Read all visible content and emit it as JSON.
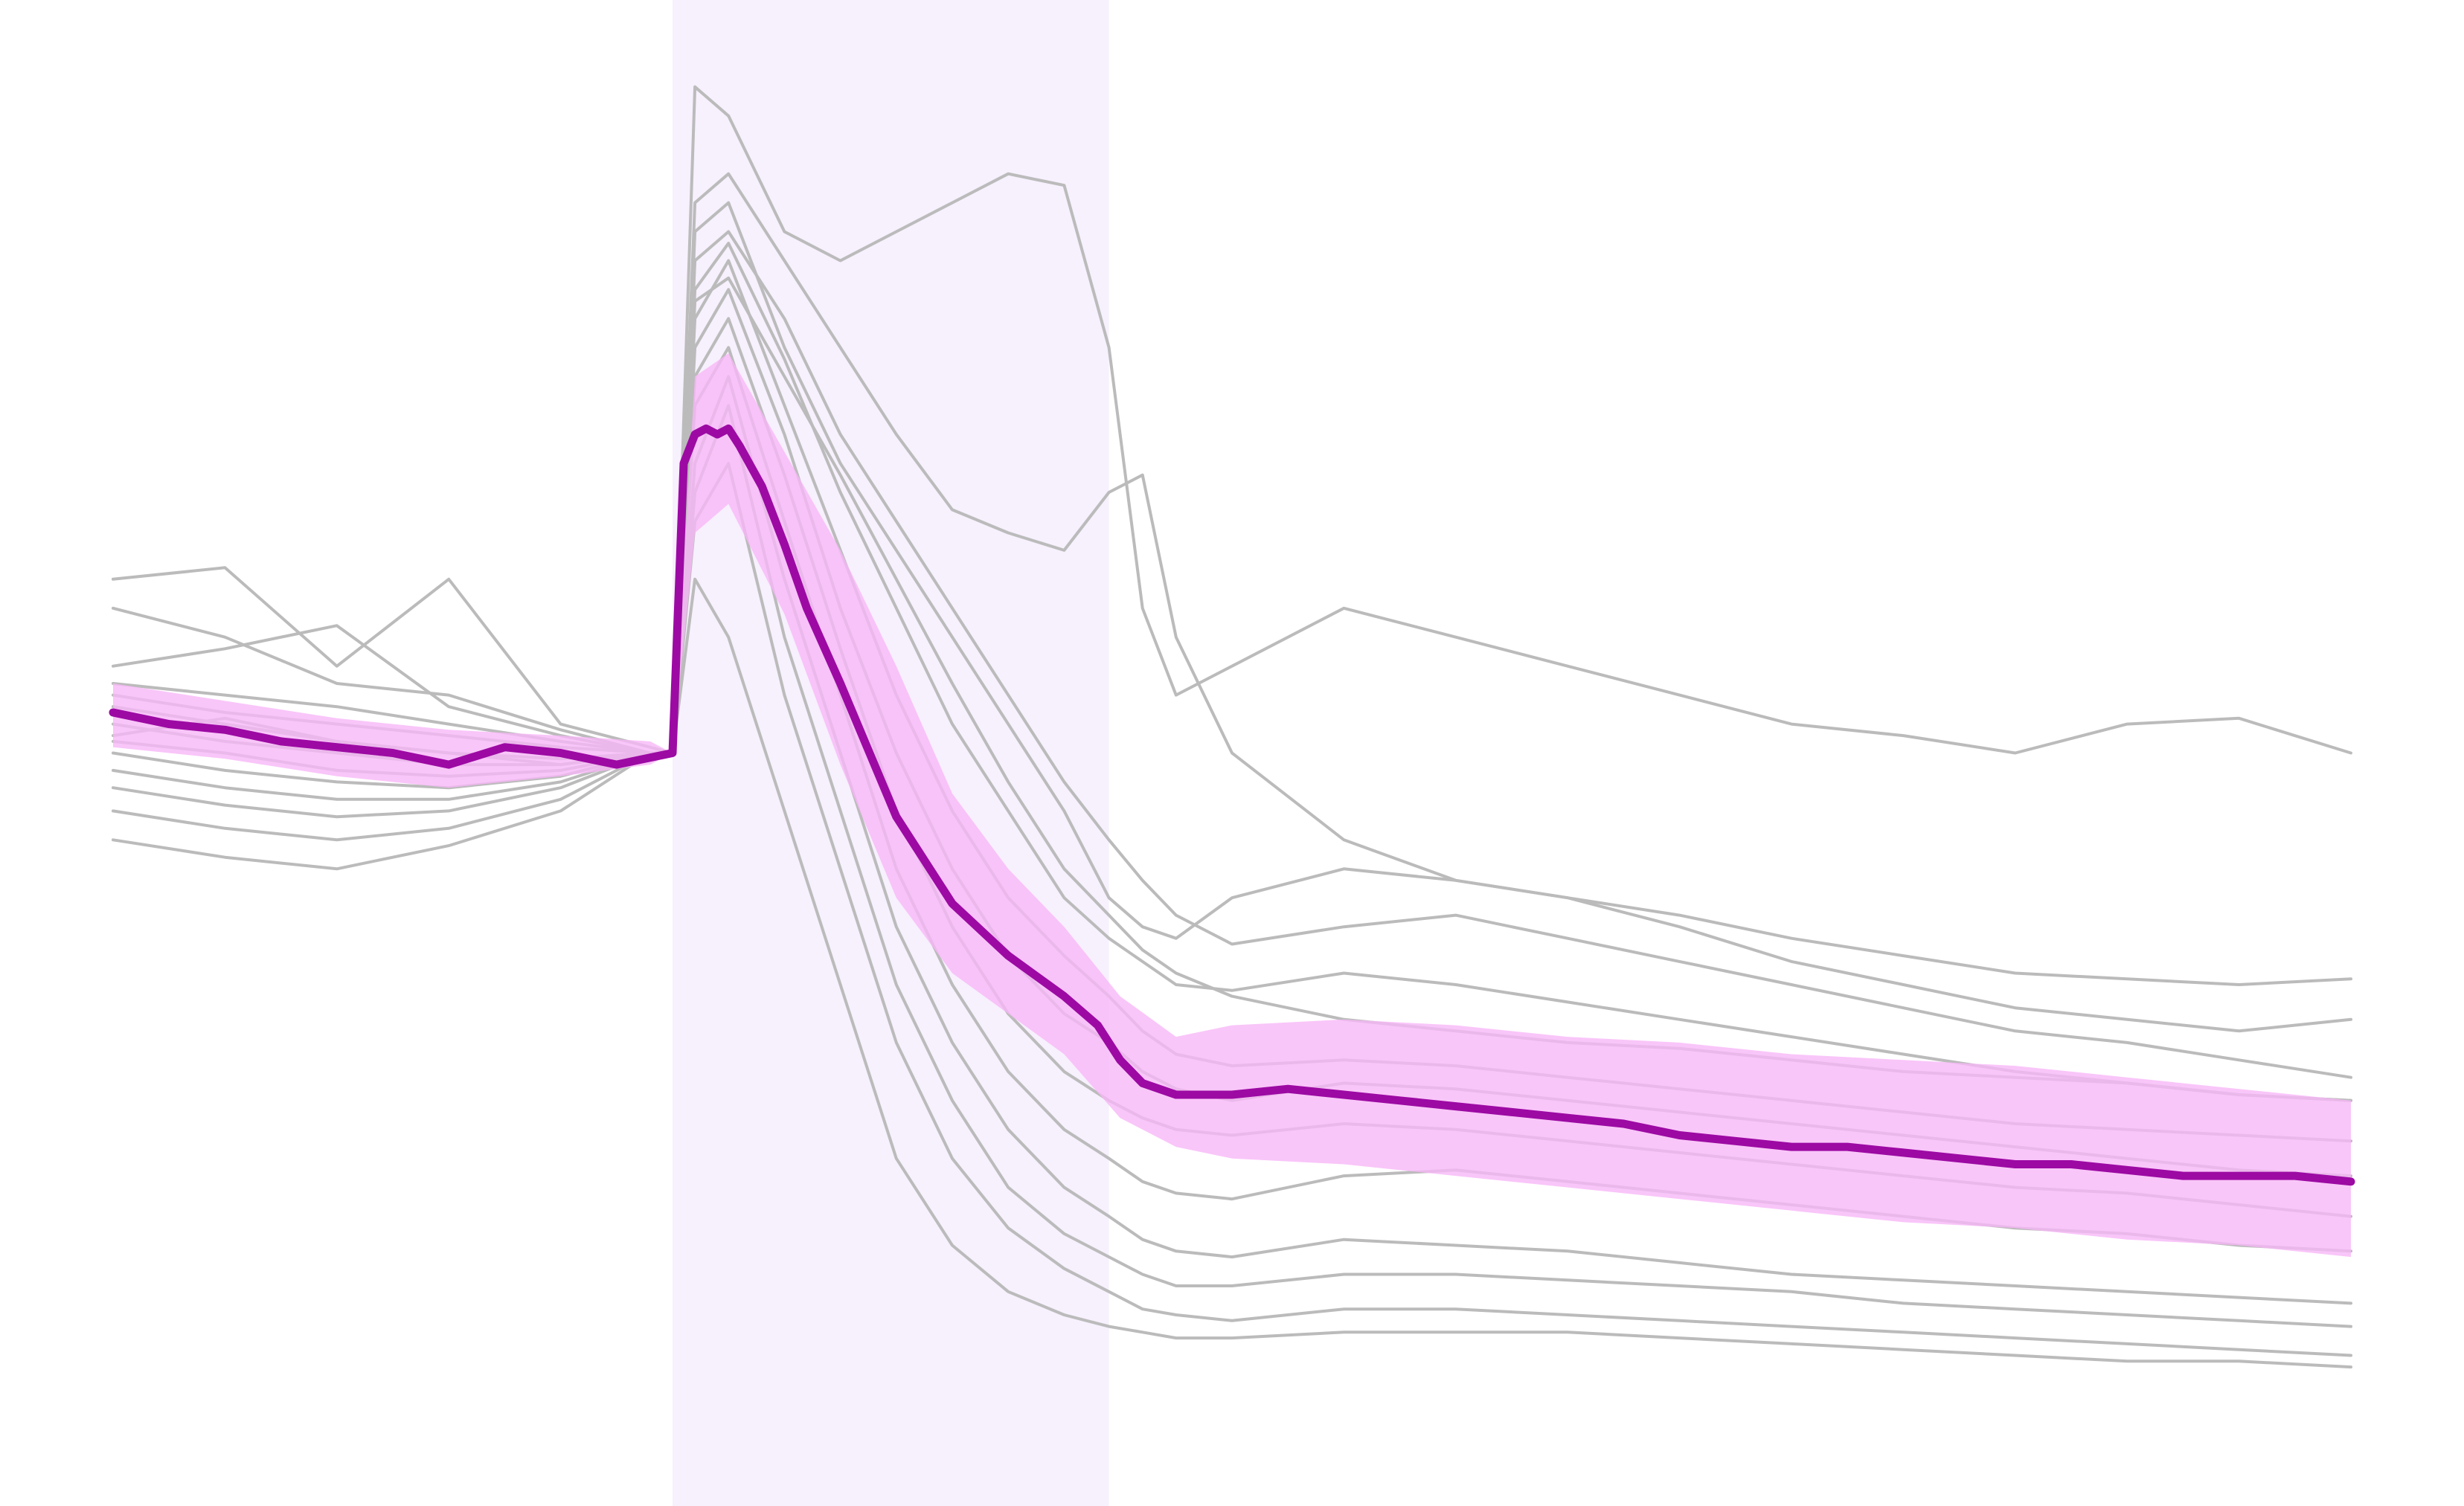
{
  "chart_data": {
    "type": "line",
    "title": "",
    "xlabel": "",
    "ylabel": "",
    "grid": false,
    "axes_visible": false,
    "legend": "none",
    "xlim": [
      0,
      200
    ],
    "ylim": [
      -13,
      13
    ],
    "shaded_interval": {
      "x_start": 50,
      "x_end": 89
    },
    "colors": {
      "individual_traces": "#bbbbbb",
      "mean_line": "#9c0aa3",
      "error_band": "#f7b8f8",
      "shaded_interval": "#f7f0fd"
    },
    "mean_series": {
      "x": [
        0,
        5,
        10,
        15,
        20,
        25,
        30,
        35,
        40,
        45,
        50,
        51,
        52,
        53,
        54,
        55,
        56,
        58,
        60,
        62,
        65,
        70,
        75,
        80,
        85,
        88,
        90,
        92,
        95,
        100,
        105,
        110,
        115,
        120,
        125,
        130,
        135,
        140,
        145,
        150,
        155,
        160,
        165,
        170,
        175,
        180,
        185,
        190,
        195,
        200
      ],
      "y": [
        0.7,
        0.5,
        0.4,
        0.2,
        0.1,
        0.0,
        -0.2,
        0.1,
        0.0,
        -0.2,
        0.0,
        5.0,
        5.5,
        5.6,
        5.5,
        5.6,
        5.3,
        4.6,
        3.6,
        2.5,
        1.2,
        -1.1,
        -2.6,
        -3.5,
        -4.2,
        -4.7,
        -5.3,
        -5.7,
        -5.9,
        -5.9,
        -5.8,
        -5.9,
        -6.0,
        -6.1,
        -6.2,
        -6.3,
        -6.4,
        -6.6,
        -6.7,
        -6.8,
        -6.8,
        -6.9,
        -7.0,
        -7.1,
        -7.1,
        -7.2,
        -7.3,
        -7.3,
        -7.3,
        -7.4
      ]
    },
    "error_band": {
      "x": [
        0,
        10,
        20,
        30,
        40,
        48,
        50,
        52,
        55,
        60,
        65,
        70,
        75,
        80,
        85,
        90,
        95,
        100,
        110,
        120,
        130,
        140,
        150,
        160,
        170,
        180,
        190,
        200
      ],
      "lower": [
        0.1,
        -0.1,
        -0.4,
        -0.6,
        -0.4,
        -0.2,
        0.0,
        3.8,
        4.3,
        2.4,
        -0.2,
        -2.5,
        -3.8,
        -4.5,
        -5.2,
        -6.3,
        -6.8,
        -7.0,
        -7.1,
        -7.3,
        -7.5,
        -7.7,
        -7.9,
        -8.1,
        -8.2,
        -8.4,
        -8.5,
        -8.7
      ],
      "upper": [
        1.2,
        0.9,
        0.6,
        0.4,
        0.3,
        0.2,
        0.0,
        6.5,
        6.9,
        5.2,
        3.5,
        1.5,
        -0.7,
        -2.0,
        -3.0,
        -4.2,
        -4.9,
        -4.7,
        -4.6,
        -4.7,
        -4.9,
        -5.0,
        -5.2,
        -5.3,
        -5.4,
        -5.6,
        -5.8,
        -6.0
      ]
    },
    "individual_traces": {
      "x": [
        0,
        10,
        20,
        30,
        40,
        48,
        50,
        52,
        55,
        60,
        65,
        70,
        75,
        80,
        85,
        89,
        92,
        95,
        100,
        110,
        120,
        130,
        140,
        150,
        160,
        170,
        180,
        190,
        200
      ],
      "series": [
        {
          "values": [
            3.0,
            3.2,
            1.5,
            3.0,
            0.5,
            0.1,
            0.0,
            11.5,
            11.0,
            9.0,
            8.5,
            9.0,
            9.5,
            10.0,
            9.8,
            7.0,
            2.5,
            1.0,
            1.5,
            2.5,
            2.0,
            1.5,
            1.0,
            0.5,
            0.3,
            0.0,
            0.5,
            0.6,
            0.0
          ]
        },
        {
          "values": [
            2.5,
            2.0,
            1.2,
            1.0,
            0.4,
            0.0,
            0.0,
            9.5,
            10.0,
            8.5,
            7.0,
            5.5,
            4.2,
            3.8,
            3.5,
            4.5,
            4.8,
            2.0,
            0.0,
            -1.5,
            -2.2,
            -2.5,
            -2.8,
            -3.2,
            -3.5,
            -3.8,
            -3.9,
            -4.0,
            -3.9
          ]
        },
        {
          "values": [
            1.5,
            1.8,
            2.2,
            0.8,
            0.3,
            0.0,
            0.0,
            9.0,
            9.5,
            7.0,
            5.0,
            3.5,
            2.0,
            0.5,
            -1.0,
            -2.5,
            -3.0,
            -3.2,
            -2.5,
            -2.0,
            -2.2,
            -2.5,
            -3.0,
            -3.6,
            -4.0,
            -4.4,
            -4.6,
            -4.8,
            -4.6
          ]
        },
        {
          "values": [
            1.2,
            1.0,
            0.8,
            0.5,
            0.2,
            0.0,
            0.0,
            8.5,
            9.0,
            7.5,
            5.5,
            4.0,
            2.5,
            1.0,
            -0.5,
            -1.5,
            -2.2,
            -2.8,
            -3.3,
            -3.0,
            -2.8,
            -3.2,
            -3.6,
            -4.0,
            -4.4,
            -4.8,
            -5.0,
            -5.3,
            -5.6
          ]
        },
        {
          "values": [
            1.0,
            0.7,
            0.5,
            0.3,
            0.1,
            0.0,
            0.0,
            8.0,
            8.8,
            6.8,
            4.5,
            2.5,
            0.5,
            -1.0,
            -2.5,
            -3.2,
            -3.6,
            -4.0,
            -4.1,
            -3.8,
            -4.0,
            -4.3,
            -4.6,
            -4.9,
            -5.2,
            -5.5,
            -5.7,
            -5.9,
            -6.0
          ]
        },
        {
          "values": [
            0.8,
            0.5,
            0.2,
            0.0,
            -0.1,
            0.0,
            0.0,
            7.5,
            8.5,
            6.0,
            3.5,
            1.0,
            -1.0,
            -2.5,
            -3.5,
            -4.2,
            -4.8,
            -5.2,
            -5.4,
            -5.3,
            -5.4,
            -5.6,
            -5.8,
            -6.0,
            -6.2,
            -6.4,
            -6.5,
            -6.6,
            -6.7
          ]
        },
        {
          "values": [
            0.5,
            0.2,
            0.0,
            -0.2,
            -0.2,
            0.0,
            0.0,
            7.0,
            8.0,
            5.5,
            2.5,
            0.0,
            -2.0,
            -3.5,
            -4.5,
            -5.0,
            -5.5,
            -5.8,
            -6.0,
            -5.7,
            -5.8,
            -6.0,
            -6.2,
            -6.4,
            -6.6,
            -6.8,
            -7.0,
            -7.2,
            -7.3
          ]
        },
        {
          "values": [
            0.2,
            0.0,
            -0.3,
            -0.4,
            -0.3,
            0.0,
            0.0,
            6.5,
            7.5,
            4.8,
            1.8,
            -1.0,
            -3.0,
            -4.5,
            -5.5,
            -6.0,
            -6.3,
            -6.5,
            -6.6,
            -6.4,
            -6.5,
            -6.7,
            -6.9,
            -7.1,
            -7.3,
            -7.5,
            -7.6,
            -7.8,
            -8.0
          ]
        },
        {
          "values": [
            0.0,
            -0.3,
            -0.5,
            -0.6,
            -0.4,
            0.0,
            0.0,
            6.0,
            7.0,
            4.0,
            1.0,
            -2.0,
            -4.0,
            -5.5,
            -6.5,
            -7.0,
            -7.4,
            -7.6,
            -7.7,
            -7.3,
            -7.2,
            -7.4,
            -7.6,
            -7.8,
            -8.0,
            -8.2,
            -8.3,
            -8.5,
            -8.6
          ]
        },
        {
          "values": [
            -0.3,
            -0.6,
            -0.8,
            -0.8,
            -0.5,
            0.0,
            0.0,
            5.0,
            6.5,
            3.0,
            0.0,
            -3.0,
            -5.0,
            -6.5,
            -7.5,
            -8.0,
            -8.4,
            -8.6,
            -8.7,
            -8.4,
            -8.5,
            -8.6,
            -8.8,
            -9.0,
            -9.1,
            -9.2,
            -9.3,
            -9.4,
            -9.5
          ]
        },
        {
          "values": [
            -0.6,
            -0.9,
            -1.1,
            -1.0,
            -0.6,
            0.0,
            0.0,
            4.5,
            6.0,
            2.0,
            -1.0,
            -4.0,
            -6.0,
            -7.5,
            -8.3,
            -8.7,
            -9.0,
            -9.2,
            -9.2,
            -9.0,
            -9.0,
            -9.1,
            -9.2,
            -9.3,
            -9.5,
            -9.6,
            -9.7,
            -9.8,
            -9.9
          ]
        },
        {
          "values": [
            -1.0,
            -1.3,
            -1.5,
            -1.3,
            -0.8,
            0.0,
            0.0,
            4.0,
            5.0,
            1.0,
            -2.0,
            -5.0,
            -7.0,
            -8.2,
            -8.9,
            -9.3,
            -9.6,
            -9.7,
            -9.8,
            -9.6,
            -9.6,
            -9.7,
            -9.8,
            -9.9,
            -10.0,
            -10.1,
            -10.2,
            -10.3,
            -10.4
          ]
        },
        {
          "values": [
            -1.5,
            -1.8,
            -2.0,
            -1.6,
            -1.0,
            0.0,
            0.0,
            3.0,
            2.0,
            -1.0,
            -4.0,
            -7.0,
            -8.5,
            -9.3,
            -9.7,
            -9.9,
            -10.0,
            -10.1,
            -10.1,
            -10.0,
            -10.0,
            -10.0,
            -10.1,
            -10.2,
            -10.3,
            -10.4,
            -10.5,
            -10.5,
            -10.6
          ]
        },
        {
          "values": [
            0.3,
            0.6,
            0.2,
            0.0,
            -0.2,
            0.0,
            0.0,
            7.8,
            8.2,
            6.5,
            4.8,
            3.0,
            1.2,
            -0.5,
            -2.0,
            -2.8,
            -3.4,
            -3.8,
            -4.2,
            -4.6,
            -4.8,
            -5.0,
            -5.1,
            -5.3,
            -5.5,
            -5.6,
            -5.7,
            -5.9,
            -6.0
          ]
        }
      ]
    }
  }
}
